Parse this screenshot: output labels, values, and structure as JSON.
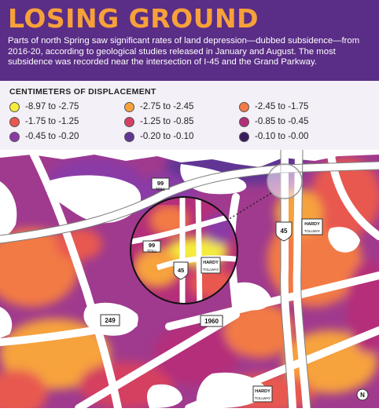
{
  "header": {
    "title": "LOSING GROUND",
    "description": "Parts of north Spring saw significant rates of land depression—dubbed subsidence—from 2016-20, according to geological studies released in January and August. The most subsidence was recorded near the intersection of I-45 and the Grand Parkway."
  },
  "legend": {
    "title": "CENTIMETERS OF DISPLACEMENT",
    "items": [
      {
        "label": "-8.97 to -2.75",
        "color": "#f5ec3c"
      },
      {
        "label": "-2.75 to -2.45",
        "color": "#f6a23c"
      },
      {
        "label": "-2.45 to -1.75",
        "color": "#f27a45"
      },
      {
        "label": "-1.75 to -1.25",
        "color": "#e8584f"
      },
      {
        "label": "-1.25 to -0.85",
        "color": "#d54161"
      },
      {
        "label": "-0.85 to -0.45",
        "color": "#b42f7a"
      },
      {
        "label": "-0.45 to -0.20",
        "color": "#8a3aa6"
      },
      {
        "label": "-0.20 to -0.10",
        "color": "#603694"
      },
      {
        "label": "-0.10 to -0.00",
        "color": "#3b1d5e"
      }
    ]
  },
  "map": {
    "shields": {
      "toll99_top": {
        "num": "99",
        "sub": "TOLL"
      },
      "toll99_inset": {
        "num": "99",
        "sub": "TOLL"
      },
      "i45_right": "45",
      "i45_inset": "45",
      "hardy_right": "HARDY",
      "hardy_inset": "HARDY",
      "hardy_bottom": "HARDY",
      "r249": "249",
      "r1960": "1960",
      "tollway_sub": "TOLLWAY"
    },
    "north_arrow": "N"
  }
}
